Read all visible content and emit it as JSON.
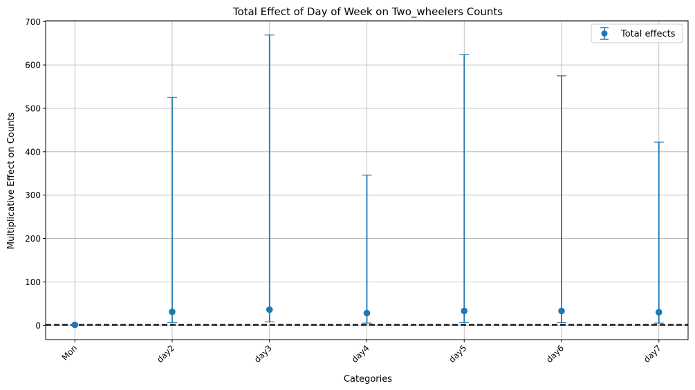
{
  "chart_data": {
    "type": "scatter",
    "title": "Total Effect of Day of Week on Two_wheelers Counts",
    "xlabel": "Categories",
    "ylabel": "Multiplicative Effect on Counts",
    "categories": [
      "Mon",
      "day2",
      "day3",
      "day4",
      "day5",
      "day6",
      "day7"
    ],
    "series": [
      {
        "name": "Total effects",
        "values": [
          1,
          31,
          36,
          28,
          33,
          33,
          30
        ],
        "lower": [
          1,
          6,
          8,
          5,
          6,
          6,
          5
        ],
        "upper": [
          1,
          525,
          669,
          346,
          624,
          575,
          422
        ]
      }
    ],
    "ylim": [
      -33,
      702
    ],
    "yticks": [
      0,
      100,
      200,
      300,
      400,
      500,
      600,
      700
    ],
    "reference_line": 1,
    "grid": true,
    "legend_position": "top-right",
    "x_tick_rotation": 45,
    "colors": {
      "series": "#1f77b4",
      "reference_line": "#000000",
      "grid": "#b0b0b0"
    }
  }
}
